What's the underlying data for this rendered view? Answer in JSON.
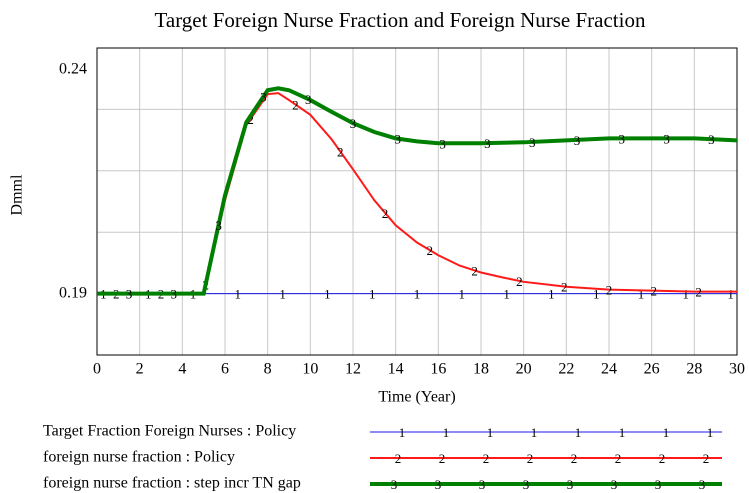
{
  "chart_data": {
    "type": "line",
    "title": "Target Foreign Nurse Fraction and Foreign Nurse Fraction",
    "xlabel": "Time (Year)",
    "ylabel": "Dmml",
    "xlim": [
      0,
      30
    ],
    "xticks": [
      0,
      2,
      4,
      6,
      8,
      10,
      12,
      14,
      16,
      18,
      20,
      22,
      24,
      26,
      28,
      30
    ],
    "ylim": [
      0.1775,
      0.24
    ],
    "yticks": [
      0.19,
      0.24
    ],
    "grid": true,
    "x": [
      0,
      1,
      2,
      3,
      4,
      5,
      6,
      7,
      8,
      8.5,
      9,
      10,
      11,
      12,
      13,
      14,
      15,
      16,
      17,
      18,
      19,
      20,
      22,
      24,
      26,
      28,
      30
    ],
    "series": [
      {
        "name": "Target Fraction Foreign Nurses : Policy",
        "marker": "1",
        "color": "#1a1ae6",
        "width": 1,
        "values": [
          0.19,
          0.19,
          0.19,
          0.19,
          0.19,
          0.19,
          0.19,
          0.19,
          0.19,
          0.19,
          0.19,
          0.19,
          0.19,
          0.19,
          0.19,
          0.19,
          0.19,
          0.19,
          0.19,
          0.19,
          0.19,
          0.19,
          0.19,
          0.19,
          0.19,
          0.19,
          0.19
        ]
      },
      {
        "name": "foreign nurse fraction : Policy",
        "marker": "2",
        "color": "#ff1a1a",
        "width": 2,
        "values": [
          0.19,
          0.19,
          0.19,
          0.19,
          0.19,
          0.19,
          0.209,
          0.2243,
          0.2306,
          0.2308,
          0.2294,
          0.2264,
          0.2214,
          0.2153,
          0.209,
          0.2039,
          0.2004,
          0.1978,
          0.1957,
          0.1943,
          0.1933,
          0.1924,
          0.1914,
          0.1908,
          0.1906,
          0.1904,
          0.1904
        ]
      },
      {
        "name": "foreign nurse fraction : step incr TN gap",
        "marker": "3",
        "color": "#008000",
        "width": 4,
        "values": [
          0.19,
          0.19,
          0.19,
          0.19,
          0.19,
          0.19,
          0.21,
          0.2249,
          0.2314,
          0.2318,
          0.2314,
          0.2294,
          0.227,
          0.2247,
          0.2229,
          0.2216,
          0.221,
          0.2206,
          0.2206,
          0.2206,
          0.2207,
          0.2208,
          0.2212,
          0.2216,
          0.2216,
          0.2216,
          0.2212
        ]
      }
    ]
  }
}
